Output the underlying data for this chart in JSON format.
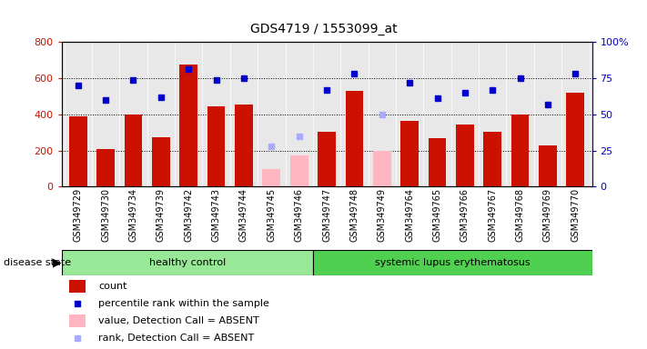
{
  "title": "GDS4719 / 1553099_at",
  "samples": [
    "GSM349729",
    "GSM349730",
    "GSM349734",
    "GSM349739",
    "GSM349742",
    "GSM349743",
    "GSM349744",
    "GSM349745",
    "GSM349746",
    "GSM349747",
    "GSM349748",
    "GSM349749",
    "GSM349764",
    "GSM349765",
    "GSM349766",
    "GSM349767",
    "GSM349768",
    "GSM349769",
    "GSM349770"
  ],
  "counts": [
    390,
    210,
    400,
    275,
    675,
    445,
    455,
    null,
    null,
    305,
    530,
    null,
    365,
    270,
    345,
    305,
    400,
    230,
    520
  ],
  "counts_absent": [
    null,
    null,
    null,
    null,
    null,
    null,
    null,
    100,
    175,
    null,
    null,
    200,
    null,
    null,
    null,
    null,
    null,
    null,
    null
  ],
  "percentile_ranks": [
    70,
    60,
    74,
    62,
    81,
    74,
    75,
    null,
    null,
    67,
    78,
    null,
    72,
    61,
    65,
    67,
    75,
    57,
    78
  ],
  "percentile_ranks_absent": [
    null,
    null,
    null,
    null,
    null,
    null,
    null,
    28,
    35,
    null,
    null,
    50,
    null,
    null,
    null,
    null,
    null,
    null,
    null
  ],
  "group_split_idx": 9,
  "healthy_label": "healthy control",
  "lupus_label": "systemic lupus erythematosus",
  "left_ylim": [
    0,
    800
  ],
  "right_ylim": [
    0,
    100
  ],
  "left_yticks": [
    0,
    200,
    400,
    600,
    800
  ],
  "right_yticks": [
    0,
    25,
    50,
    75,
    100
  ],
  "right_yticklabels": [
    "0",
    "25",
    "50",
    "75",
    "100%"
  ],
  "left_yticklabels": [
    "0",
    "200",
    "400",
    "600",
    "800"
  ],
  "bar_color_present": "#CC1100",
  "bar_color_absent": "#FFB6C1",
  "dot_color_present": "#0000CC",
  "dot_color_absent": "#AAAAFF",
  "bg_color": "#E8E8E8",
  "healthy_green": "#98E898",
  "lupus_green": "#50D050",
  "legend_items": [
    {
      "label": "count",
      "color": "#CC1100",
      "type": "bar"
    },
    {
      "label": "percentile rank within the sample",
      "color": "#0000CC",
      "type": "dot"
    },
    {
      "label": "value, Detection Call = ABSENT",
      "color": "#FFB6C1",
      "type": "bar"
    },
    {
      "label": "rank, Detection Call = ABSENT",
      "color": "#AAAAFF",
      "type": "dot"
    }
  ]
}
